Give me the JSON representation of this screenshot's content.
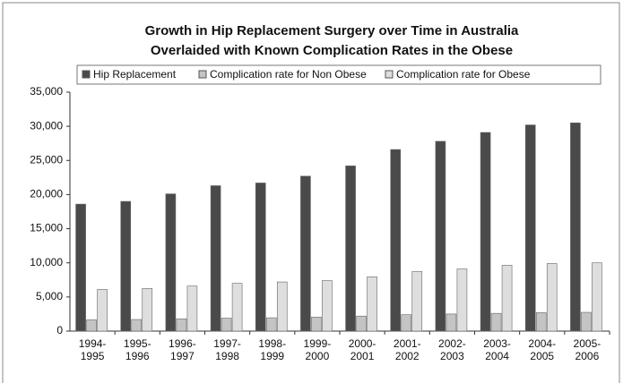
{
  "chart_data": {
    "type": "bar",
    "title": [
      "Growth in Hip Replacement Surgery over Time in Australia",
      "Overlaided with Known Complication Rates in the Obese"
    ],
    "categories": [
      "1994-1995",
      "1995-1996",
      "1996-1997",
      "1997-1998",
      "1998-1999",
      "1999-2000",
      "2000-2001",
      "2001-2002",
      "2002-2003",
      "2003-2004",
      "2004-2005",
      "2005-2006"
    ],
    "series": [
      {
        "name": "Hip Replacement",
        "color": "#4a4a4a",
        "values": [
          18600,
          19000,
          20100,
          21300,
          21700,
          22700,
          24200,
          26600,
          27800,
          29100,
          30200,
          30500
        ]
      },
      {
        "name": "Complication rate for Non Obese",
        "color": "#c4c4c4",
        "values": [
          1650,
          1700,
          1800,
          1900,
          1950,
          2050,
          2200,
          2400,
          2500,
          2600,
          2700,
          2750
        ]
      },
      {
        "name": "Complication rate for Obese",
        "color": "#dedede",
        "values": [
          6100,
          6250,
          6600,
          7000,
          7200,
          7400,
          7950,
          8750,
          9100,
          9650,
          9900,
          10000
        ]
      }
    ],
    "ylim": [
      0,
      35000
    ],
    "yticks": [
      0,
      {
        "value": 5000,
        "label": "5,000"
      },
      {
        "value": 10000,
        "label": "10,000"
      },
      {
        "value": 15000,
        "label": "15,000"
      },
      {
        "value": 20000,
        "label": "20,000"
      },
      {
        "value": 25000,
        "label": "25,000"
      },
      {
        "value": 30000,
        "label": "30,000"
      },
      {
        "value": 35000,
        "label": "35,000"
      }
    ],
    "grid": false,
    "legend": "top"
  }
}
